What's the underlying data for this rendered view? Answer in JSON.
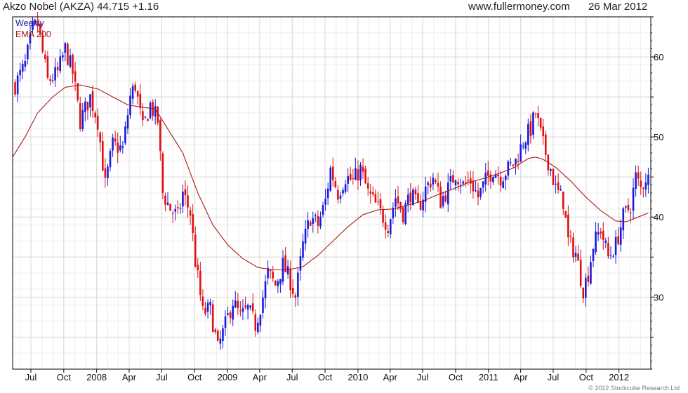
{
  "header": {
    "title": "Akzo Nobel (AKZA) 44.715 +1.16",
    "site": "www.fullermoney.com",
    "date": "26 Mar 2012"
  },
  "legend": {
    "weekly": "Weekly",
    "ema": "EMA 200"
  },
  "copyright": "© 2012 Stockcube Research Ltd",
  "colors": {
    "up": "#1a1adc",
    "down": "#e01010",
    "ema": "#aa1a1a",
    "grid": "#d8d8d8",
    "axis": "#000000"
  },
  "chart_data": {
    "type": "candlestick",
    "interval": "weekly",
    "grid": true,
    "y_axis_side": "right",
    "ylim": [
      21,
      65
    ],
    "y_ticks": [
      30,
      40,
      50,
      60
    ],
    "x_range": [
      "2007-05-11",
      "2012-03-30"
    ],
    "x_ticks": [
      {
        "label": "Jul",
        "date": "2007-07-01"
      },
      {
        "label": "Oct",
        "date": "2007-10-01"
      },
      {
        "label": "2008",
        "date": "2008-01-01"
      },
      {
        "label": "Apr",
        "date": "2008-04-01"
      },
      {
        "label": "Jul",
        "date": "2008-07-01"
      },
      {
        "label": "Oct",
        "date": "2008-10-01"
      },
      {
        "label": "2009",
        "date": "2009-01-01"
      },
      {
        "label": "Apr",
        "date": "2009-04-01"
      },
      {
        "label": "Jul",
        "date": "2009-07-01"
      },
      {
        "label": "Oct",
        "date": "2009-10-01"
      },
      {
        "label": "2010",
        "date": "2010-01-01"
      },
      {
        "label": "Apr",
        "date": "2010-04-01"
      },
      {
        "label": "Jul",
        "date": "2010-07-01"
      },
      {
        "label": "Oct",
        "date": "2010-10-01"
      },
      {
        "label": "2011",
        "date": "2011-01-01"
      },
      {
        "label": "Apr",
        "date": "2011-04-01"
      },
      {
        "label": "Jul",
        "date": "2011-07-01"
      },
      {
        "label": "Oct",
        "date": "2011-10-01"
      },
      {
        "label": "2012",
        "date": "2012-01-01"
      }
    ],
    "close_path": [
      [
        "2007-05-18",
        56.5
      ],
      [
        "2007-06-15",
        59
      ],
      [
        "2007-07-06",
        63.5
      ],
      [
        "2007-07-20",
        64
      ],
      [
        "2007-08-17",
        57
      ],
      [
        "2007-09-14",
        58
      ],
      [
        "2007-10-05",
        61
      ],
      [
        "2007-10-26",
        58
      ],
      [
        "2007-11-16",
        52
      ],
      [
        "2007-12-14",
        55
      ],
      [
        "2008-01-04",
        52
      ],
      [
        "2008-01-25",
        44
      ],
      [
        "2008-02-15",
        49
      ],
      [
        "2008-03-14",
        48.5
      ],
      [
        "2008-04-04",
        55
      ],
      [
        "2008-04-18",
        56.5
      ],
      [
        "2008-05-09",
        51
      ],
      [
        "2008-05-30",
        54
      ],
      [
        "2008-06-20",
        52
      ],
      [
        "2008-07-04",
        43
      ],
      [
        "2008-07-25",
        41
      ],
      [
        "2008-08-15",
        40
      ],
      [
        "2008-08-29",
        43
      ],
      [
        "2008-09-19",
        40.5
      ],
      [
        "2008-10-03",
        34.5
      ],
      [
        "2008-10-24",
        28
      ],
      [
        "2008-11-14",
        28.5
      ],
      [
        "2008-12-05",
        23.5
      ],
      [
        "2008-12-26",
        26.5
      ],
      [
        "2009-01-16",
        29.5
      ],
      [
        "2009-02-06",
        27.5
      ],
      [
        "2009-02-27",
        28.5
      ],
      [
        "2009-03-20",
        26.5
      ],
      [
        "2009-04-10",
        30
      ],
      [
        "2009-04-24",
        33
      ],
      [
        "2009-05-15",
        31.5
      ],
      [
        "2009-06-05",
        34
      ],
      [
        "2009-06-26",
        32
      ],
      [
        "2009-07-10",
        30
      ],
      [
        "2009-07-31",
        36.5
      ],
      [
        "2009-08-21",
        40
      ],
      [
        "2009-09-11",
        39
      ],
      [
        "2009-10-02",
        42
      ],
      [
        "2009-10-16",
        46
      ],
      [
        "2009-11-06",
        43
      ],
      [
        "2009-11-27",
        45
      ],
      [
        "2009-12-18",
        44.5
      ],
      [
        "2010-01-08",
        46
      ],
      [
        "2010-01-29",
        43
      ],
      [
        "2010-02-19",
        41.5
      ],
      [
        "2010-03-12",
        40
      ],
      [
        "2010-03-26",
        39
      ],
      [
        "2010-04-16",
        42.5
      ],
      [
        "2010-05-07",
        40.5
      ],
      [
        "2010-05-28",
        43
      ],
      [
        "2010-06-18",
        41
      ],
      [
        "2010-07-09",
        43.5
      ],
      [
        "2010-07-30",
        45
      ],
      [
        "2010-08-20",
        42
      ],
      [
        "2010-09-10",
        43.5
      ],
      [
        "2010-10-01",
        45.5
      ],
      [
        "2010-10-22",
        44
      ],
      [
        "2010-11-12",
        44.5
      ],
      [
        "2010-12-03",
        42.5
      ],
      [
        "2010-12-24",
        44.5
      ],
      [
        "2011-01-14",
        46
      ],
      [
        "2011-02-04",
        45
      ],
      [
        "2011-02-25",
        46
      ],
      [
        "2011-03-18",
        47
      ],
      [
        "2011-04-08",
        49.5
      ],
      [
        "2011-04-29",
        51
      ],
      [
        "2011-05-13",
        53
      ],
      [
        "2011-06-03",
        49
      ],
      [
        "2011-06-24",
        46
      ],
      [
        "2011-07-08",
        43.5
      ],
      [
        "2011-07-29",
        42
      ],
      [
        "2011-08-12",
        37
      ],
      [
        "2011-09-02",
        35.5
      ],
      [
        "2011-09-23",
        31
      ],
      [
        "2011-10-07",
        33
      ],
      [
        "2011-10-21",
        36.5
      ],
      [
        "2011-11-11",
        38.5
      ],
      [
        "2011-12-02",
        35
      ],
      [
        "2011-12-23",
        36.5
      ],
      [
        "2012-01-13",
        40
      ],
      [
        "2012-02-03",
        41.5
      ],
      [
        "2012-02-17",
        45
      ],
      [
        "2012-03-02",
        43.5
      ],
      [
        "2012-03-16",
        45
      ],
      [
        "2012-03-23",
        44.7
      ]
    ],
    "series": [
      {
        "name": "EMA 200",
        "type": "line",
        "points": [
          [
            "2007-05-11",
            47.5
          ],
          [
            "2007-06-15",
            50
          ],
          [
            "2007-07-20",
            53
          ],
          [
            "2007-08-31",
            55
          ],
          [
            "2007-10-05",
            56.2
          ],
          [
            "2007-11-16",
            56.5
          ],
          [
            "2008-01-04",
            56
          ],
          [
            "2008-02-15",
            55
          ],
          [
            "2008-03-28",
            54
          ],
          [
            "2008-05-09",
            53.7
          ],
          [
            "2008-06-13",
            53.5
          ],
          [
            "2008-07-18",
            51
          ],
          [
            "2008-08-29",
            48
          ],
          [
            "2008-10-10",
            43
          ],
          [
            "2008-11-21",
            39
          ],
          [
            "2009-01-02",
            36.5
          ],
          [
            "2009-02-13",
            34.8
          ],
          [
            "2009-03-27",
            33.7
          ],
          [
            "2009-05-08",
            33.4
          ],
          [
            "2009-06-19",
            33.4
          ],
          [
            "2009-07-31",
            33.8
          ],
          [
            "2009-09-11",
            35.2
          ],
          [
            "2009-10-23",
            37
          ],
          [
            "2009-12-04",
            38.8
          ],
          [
            "2010-01-15",
            40.3
          ],
          [
            "2010-02-26",
            40.9
          ],
          [
            "2010-04-09",
            41
          ],
          [
            "2010-05-21",
            41.5
          ],
          [
            "2010-07-02",
            42
          ],
          [
            "2010-08-13",
            42.8
          ],
          [
            "2010-09-24",
            43.5
          ],
          [
            "2010-11-05",
            44.3
          ],
          [
            "2010-12-17",
            44.8
          ],
          [
            "2011-01-28",
            45.4
          ],
          [
            "2011-03-11",
            46.1
          ],
          [
            "2011-04-22",
            47.3
          ],
          [
            "2011-05-13",
            47.5
          ],
          [
            "2011-06-03",
            47.2
          ],
          [
            "2011-07-08",
            46.2
          ],
          [
            "2011-08-19",
            44.5
          ],
          [
            "2011-09-30",
            42.5
          ],
          [
            "2011-11-11",
            40.8
          ],
          [
            "2011-12-23",
            39.5
          ],
          [
            "2012-01-20",
            39.4
          ],
          [
            "2012-02-24",
            40
          ],
          [
            "2012-03-23",
            40.5
          ]
        ]
      }
    ]
  }
}
